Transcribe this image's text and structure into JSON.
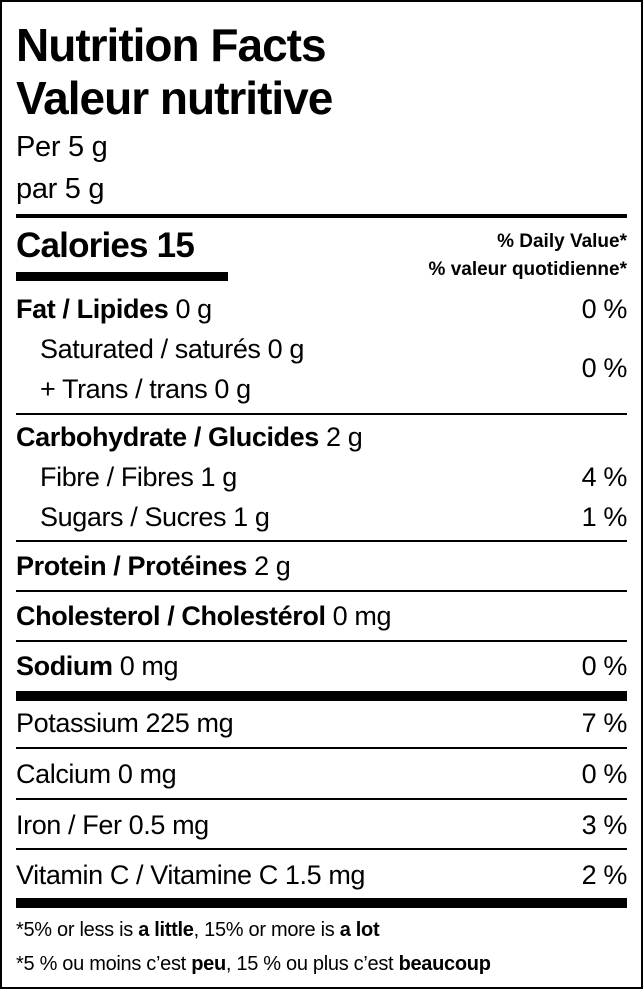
{
  "title_en": "Nutrition Facts",
  "title_fr": "Valeur nutritive",
  "serving_en": "Per 5 g",
  "serving_fr": "par 5 g",
  "calories_label": "Calories",
  "calories_value": "15",
  "dv_en": "% Daily Value*",
  "dv_fr": "% valeur quotidienne*",
  "fat": {
    "label": "Fat / Lipides",
    "amount": "0 g",
    "dv": "0 %"
  },
  "saturated": {
    "label": "Saturated / saturés 0 g"
  },
  "trans": {
    "label": "+ Trans / trans 0 g"
  },
  "sat_trans_dv": "0 %",
  "carb": {
    "label": "Carbohydrate / Glucides",
    "amount": "2 g"
  },
  "fibre": {
    "label": "Fibre / Fibres 1 g",
    "dv": "4 %"
  },
  "sugars": {
    "label": "Sugars / Sucres 1 g",
    "dv": "1 %"
  },
  "protein": {
    "label": "Protein / Protéines",
    "amount": "2 g"
  },
  "cholesterol": {
    "label": "Cholesterol / Cholestérol",
    "amount": "0 mg"
  },
  "sodium": {
    "label": "Sodium",
    "amount": "0 mg",
    "dv": "0 %"
  },
  "potassium": {
    "label": "Potassium 225 mg",
    "dv": "7 %"
  },
  "calcium": {
    "label": "Calcium 0 mg",
    "dv": "0 %"
  },
  "iron": {
    "label": "Iron / Fer 0.5 mg",
    "dv": "3 %"
  },
  "vitamin_c": {
    "label": "Vitamin C / Vitamine C 1.5 mg",
    "dv": "2 %"
  },
  "footnote_en": {
    "a": "*5% or less is ",
    "b": "a little",
    "c": ", 15% or more is ",
    "d": "a lot"
  },
  "footnote_fr": {
    "a": "*5 % ou moins c’est ",
    "b": "peu",
    "c": ", 15 % ou plus c’est ",
    "d": "beaucoup"
  }
}
